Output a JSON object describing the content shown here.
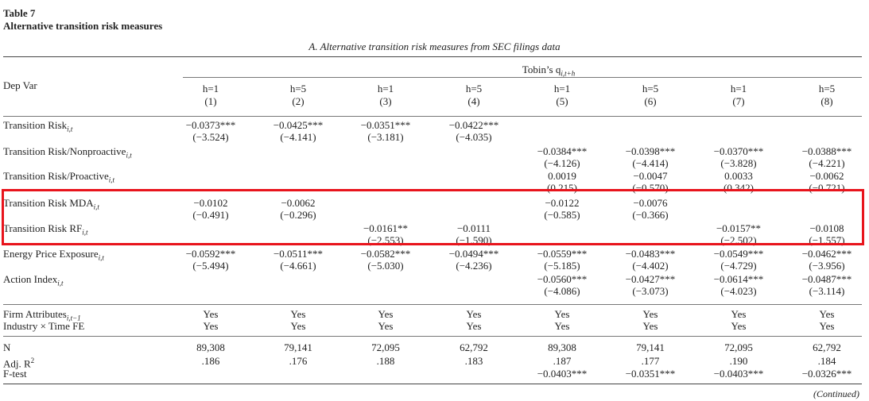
{
  "table": {
    "number": "Table 7",
    "title": "Alternative transition risk measures",
    "panel_title": "A. Alternative transition risk measures from SEC filings data",
    "header_group": "Tobin’s q",
    "header_group_sub": "i,t+h",
    "dep_var_label": "Dep Var",
    "horizons": [
      "h=1",
      "h=5",
      "h=1",
      "h=5",
      "h=1",
      "h=5",
      "h=1",
      "h=5"
    ],
    "col_numbers": [
      "(1)",
      "(2)",
      "(3)",
      "(4)",
      "(5)",
      "(6)",
      "(7)",
      "(8)"
    ]
  },
  "rows": {
    "tr_label": "Transition Risk",
    "tr_sub": "i,t",
    "tr_coef": [
      "−0.0373***",
      "−0.0425***",
      "−0.0351***",
      "−0.0422***"
    ],
    "tr_t": [
      "(−3.524)",
      "(−4.141)",
      "(−3.181)",
      "(−4.035)"
    ],
    "np_label": "Transition Risk/Nonproactive",
    "np_sub": "i,t",
    "np_coef": [
      "−0.0384***",
      "−0.0398***",
      "−0.0370***",
      "−0.0388***"
    ],
    "np_t": [
      "(−4.126)",
      "(−4.414)",
      "(−3.828)",
      "(−4.221)"
    ],
    "pr_label": "Transition Risk/Proactive",
    "pr_sub": "i,t",
    "pr_coef": [
      "0.0019",
      "−0.0047",
      "0.0033",
      "−0.0062"
    ],
    "pr_t": [
      "(0.215)",
      "(−0.570)",
      "(0.342)",
      "(−0.721)"
    ],
    "mda_label": "Transition Risk MDA",
    "mda_sub": "i,t",
    "mda_coef": [
      "−0.0102",
      "−0.0062",
      "−0.0122",
      "−0.0076"
    ],
    "mda_t": [
      "(−0.491)",
      "(−0.296)",
      "(−0.585)",
      "(−0.366)"
    ],
    "rf_label": "Transition Risk RF",
    "rf_sub": "i,t",
    "rf_coef": [
      "−0.0161**",
      "−0.0111",
      "−0.0157**",
      "−0.0108"
    ],
    "rf_t": [
      "(−2.553)",
      "(−1.590)",
      "(−2.502)",
      "(−1.557)"
    ],
    "ep_label": "Energy Price Exposure",
    "ep_sub": "i,t",
    "ep_coef": [
      "−0.0592***",
      "−0.0511***",
      "−0.0582***",
      "−0.0494***",
      "−0.0559***",
      "−0.0483***",
      "−0.0549***",
      "−0.0462***"
    ],
    "ep_t": [
      "(−5.494)",
      "(−4.661)",
      "(−5.030)",
      "(−4.236)",
      "(−5.185)",
      "(−4.402)",
      "(−4.729)",
      "(−3.956)"
    ],
    "ai_label": "Action Index",
    "ai_sub": "i,t",
    "ai_coef": [
      "−0.0560***",
      "−0.0427***",
      "−0.0614***",
      "−0.0487***"
    ],
    "ai_t": [
      "(−4.086)",
      "(−3.073)",
      "(−4.023)",
      "(−3.114)"
    ],
    "fa_label": "Firm Attributes",
    "fa_sub": "i,t−1",
    "fa_vals": [
      "Yes",
      "Yes",
      "Yes",
      "Yes",
      "Yes",
      "Yes",
      "Yes",
      "Yes"
    ],
    "fe_label": "Industry × Time FE",
    "fe_vals": [
      "Yes",
      "Yes",
      "Yes",
      "Yes",
      "Yes",
      "Yes",
      "Yes",
      "Yes"
    ],
    "n_label": "N",
    "n_vals": [
      "89,308",
      "79,141",
      "72,095",
      "62,792",
      "89,308",
      "79,141",
      "72,095",
      "62,792"
    ],
    "r2_label": "Adj. R",
    "r2_sup": "2",
    "r2_vals": [
      ".186",
      ".176",
      ".188",
      ".183",
      ".187",
      ".177",
      ".190",
      ".184"
    ],
    "f_label": "F-test",
    "f_vals": [
      "−0.0403***",
      "−0.0351***",
      "−0.0403***",
      "−0.0326***"
    ]
  },
  "footer": {
    "continued": "(Continued)"
  },
  "colors": {
    "highlight": "#e8141c"
  }
}
